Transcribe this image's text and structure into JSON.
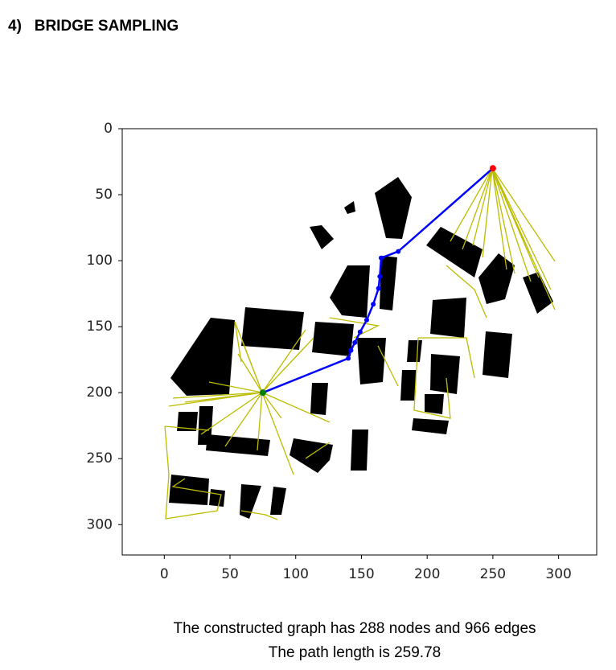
{
  "header": {
    "title": "4)   BRIDGE SAMPLING"
  },
  "chart_data": {
    "type": "line",
    "xlim": [
      -32,
      329
    ],
    "ylim": [
      323,
      0
    ],
    "xticks": [
      0,
      50,
      100,
      150,
      200,
      250,
      300
    ],
    "yticks": [
      0,
      50,
      100,
      150,
      200,
      250,
      300
    ],
    "series": [
      {
        "color": "#0000ff",
        "style": "line",
        "x": [
          75,
          140,
          142,
          145,
          149,
          154,
          159,
          163,
          164,
          165,
          178,
          250
        ],
        "y": [
          200,
          174,
          168,
          162,
          154,
          145,
          133,
          121,
          112,
          98,
          93,
          30
        ]
      },
      {
        "color": "#008000",
        "style": "point",
        "x": [
          75
        ],
        "y": [
          200
        ]
      },
      {
        "color": "#ff0000",
        "style": "point",
        "x": [
          250
        ],
        "y": [
          30
        ]
      }
    ]
  },
  "caption": {
    "lines": [
      "The constructed graph has 288 nodes and 966 edges",
      "The path length is 259.78"
    ]
  }
}
